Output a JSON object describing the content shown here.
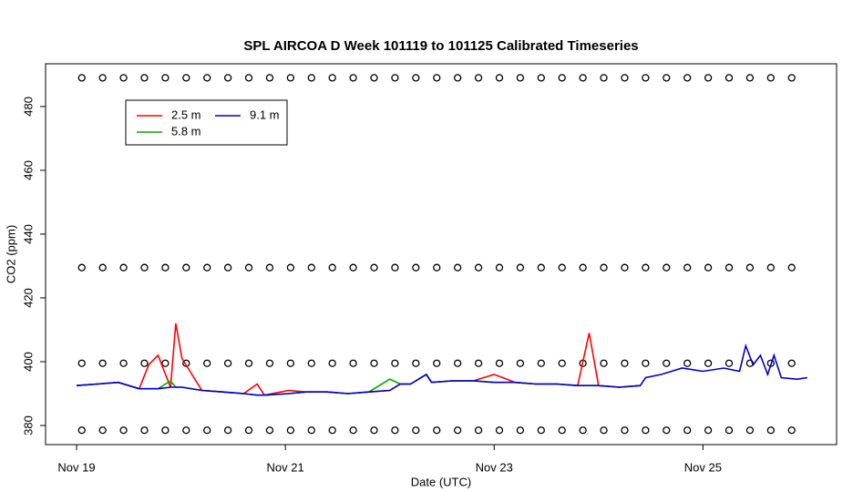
{
  "chart_data": {
    "type": "line",
    "title": "SPL AIRCOA D  Week 101119 to 101125  Calibrated Timeseries",
    "x_label": "Date (UTC)",
    "y_label": "CO2 (ppm)",
    "x": [
      0,
      0.2,
      0.4,
      0.6,
      0.69,
      0.78,
      0.9,
      0.95,
      1.01,
      1.2,
      1.4,
      1.6,
      1.73,
      1.8,
      2.03,
      2.2,
      2.4,
      2.6,
      2.8,
      3.0,
      3.1,
      3.2,
      3.35,
      3.4,
      3.6,
      3.8,
      4.0,
      4.2,
      4.4,
      4.6,
      4.8,
      4.91,
      5.0,
      5.2,
      5.4,
      5.45,
      5.6,
      5.8,
      6.0,
      6.2,
      6.35,
      6.41,
      6.48,
      6.55,
      6.62,
      6.68,
      6.75,
      6.9,
      7.0
    ],
    "series": [
      {
        "name": "2.5 m",
        "color": "#ff0000",
        "values": [
          392.5,
          393,
          393.5,
          391.5,
          399,
          402,
          392,
          412,
          401,
          391,
          390.5,
          390,
          393,
          389.5,
          391,
          390.5,
          390.5,
          390,
          390.5,
          391,
          393,
          393,
          396,
          393.5,
          394,
          394,
          396,
          393.5,
          393,
          393,
          392.5,
          409,
          392.5,
          392,
          392.5,
          null,
          null,
          null,
          null,
          null,
          null,
          null,
          null,
          null,
          null,
          null,
          null,
          null,
          null
        ]
      },
      {
        "name": "5.8 m",
        "color": "#00aa00",
        "values": [
          392.5,
          393,
          393.5,
          391.5,
          391.5,
          391.5,
          394,
          392,
          392,
          391,
          390.5,
          390,
          389.5,
          389.5,
          390,
          390.5,
          390.5,
          390,
          390.5,
          394.5,
          393,
          393,
          396,
          393.5,
          394,
          394,
          393.5,
          393.5,
          393,
          393,
          392.5,
          392.5,
          392.5,
          392,
          392.5,
          null,
          null,
          null,
          null,
          null,
          null,
          null,
          null,
          null,
          null,
          null,
          null,
          null,
          null
        ]
      },
      {
        "name": "9.1 m",
        "color": "#0000cc",
        "values": [
          392.5,
          393,
          393.5,
          391.5,
          391.5,
          391.5,
          392,
          392,
          392,
          391,
          390.5,
          390,
          389.5,
          389.5,
          390,
          390.5,
          390.5,
          390,
          390.5,
          391,
          393,
          393,
          396,
          393.5,
          394,
          394,
          393.5,
          393.5,
          393,
          393,
          392.5,
          392.5,
          392.5,
          392,
          392.5,
          395,
          396,
          398,
          397,
          398,
          397,
          405,
          399,
          402,
          396,
          402,
          395,
          394.5,
          395
        ]
      }
    ],
    "reference_levels": [
      489,
      429.5,
      399.5,
      378.5
    ],
    "reference_x": [
      0.05,
      0.25,
      0.45,
      0.65,
      0.85,
      1.05,
      1.25,
      1.45,
      1.65,
      1.85,
      2.05,
      2.25,
      2.45,
      2.65,
      2.85,
      3.05,
      3.25,
      3.45,
      3.65,
      3.85,
      4.05,
      4.25,
      4.45,
      4.65,
      4.85,
      5.05,
      5.25,
      5.45,
      5.65,
      5.85,
      6.05,
      6.25,
      6.45,
      6.65,
      6.85
    ],
    "xlim": [
      -0.297,
      7.28
    ],
    "ylim": [
      374,
      493.4
    ],
    "xticks": [
      {
        "value": 0,
        "label": "Nov 19"
      },
      {
        "value": 2,
        "label": "Nov 21"
      },
      {
        "value": 4,
        "label": "Nov 23"
      },
      {
        "value": 6,
        "label": "Nov 25"
      }
    ],
    "yticks": [
      380,
      400,
      420,
      440,
      460,
      480
    ],
    "legend": "top-left"
  }
}
